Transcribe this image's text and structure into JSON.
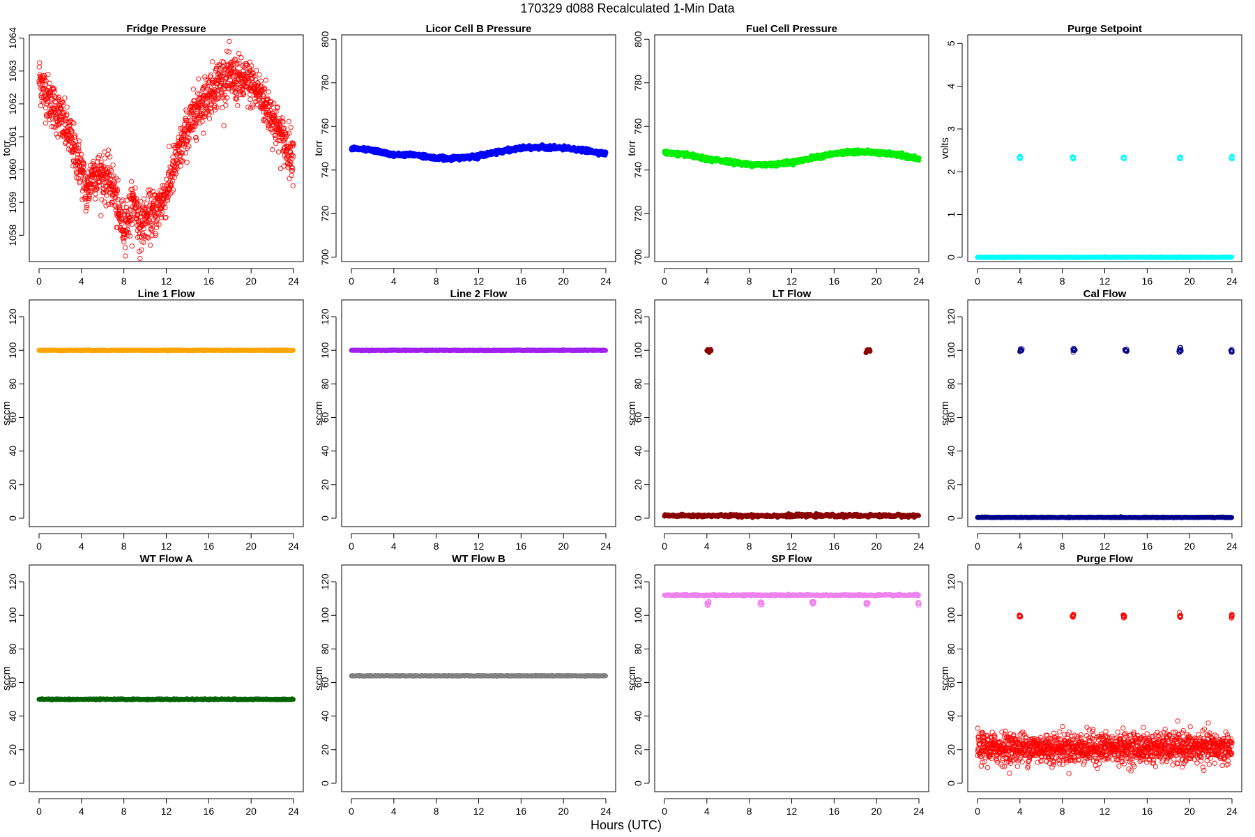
{
  "figure": {
    "title": "170329    d088    Recalculated 1-Min Data",
    "xlabel": "Hours (UTC)"
  },
  "chart_data": [
    {
      "type": "scatter",
      "title": "Fridge Pressure",
      "ylabel": "torr",
      "color": "#ff0000",
      "marker": "open",
      "xlim": [
        0,
        24
      ],
      "ylim": [
        1057.2,
        1064.1
      ],
      "xticks": [
        0,
        4,
        8,
        12,
        16,
        20,
        24
      ],
      "yticks": [
        1058,
        1059,
        1060,
        1061,
        1062,
        1063,
        1064
      ],
      "trend": {
        "x": [
          0,
          0.5,
          1,
          2,
          3,
          4,
          4.5,
          5,
          6,
          7,
          7.5,
          8,
          8.5,
          9,
          9.5,
          10,
          11,
          12,
          13,
          14,
          15,
          16,
          17,
          18,
          19,
          20,
          21,
          22,
          23,
          24
        ],
        "y": [
          1062.8,
          1062.4,
          1062.1,
          1061.6,
          1060.9,
          1060.0,
          1059.2,
          1059.9,
          1059.8,
          1059.5,
          1058.6,
          1058.3,
          1058.6,
          1059.1,
          1058.2,
          1058.5,
          1058.7,
          1059.3,
          1060.3,
          1061.2,
          1061.9,
          1062.3,
          1062.7,
          1062.8,
          1062.7,
          1062.6,
          1062.2,
          1061.6,
          1060.9,
          1060.4
        ]
      },
      "noise": 0.35,
      "n": 1440
    },
    {
      "type": "scatter",
      "title": "Licor Cell B Pressure",
      "ylabel": "torr",
      "color": "#0000ff",
      "marker": "filled",
      "xlim": [
        0,
        24
      ],
      "ylim": [
        698,
        802
      ],
      "xticks": [
        0,
        4,
        8,
        12,
        16,
        20,
        24
      ],
      "yticks": [
        700,
        720,
        740,
        760,
        780,
        800
      ],
      "trend": {
        "x": [
          0,
          2,
          4,
          6,
          8,
          10,
          12,
          14,
          16,
          18,
          20,
          22,
          24
        ],
        "y": [
          750,
          749,
          747,
          747,
          745.5,
          745.5,
          746.5,
          748.5,
          750,
          750.5,
          750,
          749,
          747.5
        ]
      },
      "noise": 0.4,
      "n": 1440
    },
    {
      "type": "scatter",
      "title": "Fuel Cell Pressure",
      "ylabel": "torr",
      "color": "#00ee00",
      "marker": "filled",
      "xlim": [
        0,
        24
      ],
      "ylim": [
        698,
        802
      ],
      "xticks": [
        0,
        4,
        8,
        12,
        16,
        20,
        24
      ],
      "yticks": [
        700,
        720,
        740,
        760,
        780,
        800
      ],
      "trend": {
        "x": [
          0,
          2,
          4,
          6,
          8,
          10,
          12,
          14,
          16,
          18,
          20,
          22,
          24
        ],
        "y": [
          748,
          747,
          745,
          744,
          742.5,
          742.5,
          743.5,
          745.5,
          747.5,
          748.5,
          748,
          747,
          745
        ]
      },
      "noise": 0.4,
      "n": 1440
    },
    {
      "type": "scatter",
      "title": "Purge Setpoint",
      "ylabel": "volts",
      "color": "#00ffff",
      "marker": "filled",
      "xlim": [
        0,
        24
      ],
      "ylim": [
        -0.1,
        5.2
      ],
      "xticks": [
        0,
        4,
        8,
        12,
        16,
        20,
        24
      ],
      "yticks": [
        0,
        1,
        2,
        3,
        4,
        5
      ],
      "baseline": 0,
      "noise": 0.005,
      "n": 1440,
      "spikes": {
        "centers": [
          4,
          9,
          13.8,
          19.1,
          24
        ],
        "value": 2.33,
        "spread": 0.05,
        "marker": "open"
      }
    },
    {
      "type": "scatter",
      "title": "Line 1 Flow",
      "ylabel": "sccm",
      "color": "#ffa500",
      "marker": "filled",
      "xlim": [
        0,
        24
      ],
      "ylim": [
        -5,
        130
      ],
      "xticks": [
        0,
        4,
        8,
        12,
        16,
        20,
        24
      ],
      "yticks": [
        0,
        20,
        40,
        60,
        80,
        100,
        120
      ],
      "baseline": 100,
      "noise": 0.1,
      "n": 1440
    },
    {
      "type": "scatter",
      "title": "Line 2 Flow",
      "ylabel": "sccm",
      "color": "#a020f0",
      "marker": "filled",
      "xlim": [
        0,
        24
      ],
      "ylim": [
        -5,
        130
      ],
      "xticks": [
        0,
        4,
        8,
        12,
        16,
        20,
        24
      ],
      "yticks": [
        0,
        20,
        40,
        60,
        80,
        100,
        120
      ],
      "baseline": 100,
      "noise": 0.1,
      "n": 1440
    },
    {
      "type": "scatter",
      "title": "LT Flow",
      "ylabel": "sccm",
      "color": "#8b0000",
      "marker": "filled",
      "xlim": [
        0,
        24
      ],
      "ylim": [
        -5,
        130
      ],
      "xticks": [
        0,
        4,
        8,
        12,
        16,
        20,
        24
      ],
      "yticks": [
        0,
        20,
        40,
        60,
        80,
        100,
        120
      ],
      "baseline": 1.5,
      "noise": 0.4,
      "n": 1440,
      "spikes": {
        "centers": [
          4.2,
          19.2
        ],
        "value": 100,
        "spread": 0.2,
        "marker": "filled"
      }
    },
    {
      "type": "scatter",
      "title": "Cal Flow",
      "ylabel": "sccm",
      "color": "#00008b",
      "marker": "filled",
      "xlim": [
        0,
        24
      ],
      "ylim": [
        -5,
        130
      ],
      "xticks": [
        0,
        4,
        8,
        12,
        16,
        20,
        24
      ],
      "yticks": [
        0,
        20,
        40,
        60,
        80,
        100,
        120
      ],
      "baseline": 0.5,
      "noise": 0.1,
      "n": 1440,
      "spikes": {
        "centers": [
          4.1,
          9.1,
          14,
          19.1,
          24
        ],
        "value": 100,
        "spread": 0.1,
        "marker": "open"
      }
    },
    {
      "type": "scatter",
      "title": "WT Flow A",
      "ylabel": "sccm",
      "color": "#006400",
      "marker": "filled",
      "xlim": [
        0,
        24
      ],
      "ylim": [
        -5,
        130
      ],
      "xticks": [
        0,
        4,
        8,
        12,
        16,
        20,
        24
      ],
      "yticks": [
        0,
        20,
        40,
        60,
        80,
        100,
        120
      ],
      "baseline": 50,
      "noise": 0.15,
      "n": 1440
    },
    {
      "type": "scatter",
      "title": "WT Flow B",
      "ylabel": "sccm",
      "color": "#808080",
      "marker": "filled",
      "xlim": [
        0,
        24
      ],
      "ylim": [
        -5,
        130
      ],
      "xticks": [
        0,
        4,
        8,
        12,
        16,
        20,
        24
      ],
      "yticks": [
        0,
        20,
        40,
        60,
        80,
        100,
        120
      ],
      "baseline": 64,
      "noise": 0.1,
      "n": 1440
    },
    {
      "type": "scatter",
      "title": "SP Flow",
      "ylabel": "sccm",
      "color": "#ee82ee",
      "marker": "filled",
      "xlim": [
        0,
        24
      ],
      "ylim": [
        -5,
        130
      ],
      "xticks": [
        0,
        4,
        8,
        12,
        16,
        20,
        24
      ],
      "yticks": [
        0,
        20,
        40,
        60,
        80,
        100,
        120
      ],
      "baseline": 112,
      "noise": 0.2,
      "n": 1440,
      "spikes": {
        "centers": [
          4.1,
          9.1,
          14,
          19.1,
          24
        ],
        "value": 107,
        "spread": 0.1,
        "marker": "open"
      }
    },
    {
      "type": "scatter",
      "title": "Purge Flow",
      "ylabel": "sccm",
      "color": "#ff0000",
      "marker": "open",
      "xlim": [
        0,
        24
      ],
      "ylim": [
        -5,
        130
      ],
      "xticks": [
        0,
        4,
        8,
        12,
        16,
        20,
        24
      ],
      "yticks": [
        0,
        20,
        40,
        60,
        80,
        100,
        120
      ],
      "baseline": 21,
      "noise": 4.5,
      "n": 1440,
      "spikes": {
        "centers": [
          4,
          9,
          13.8,
          19.1,
          24
        ],
        "value": 99.5,
        "spread": 0.06,
        "marker": "open"
      }
    }
  ]
}
